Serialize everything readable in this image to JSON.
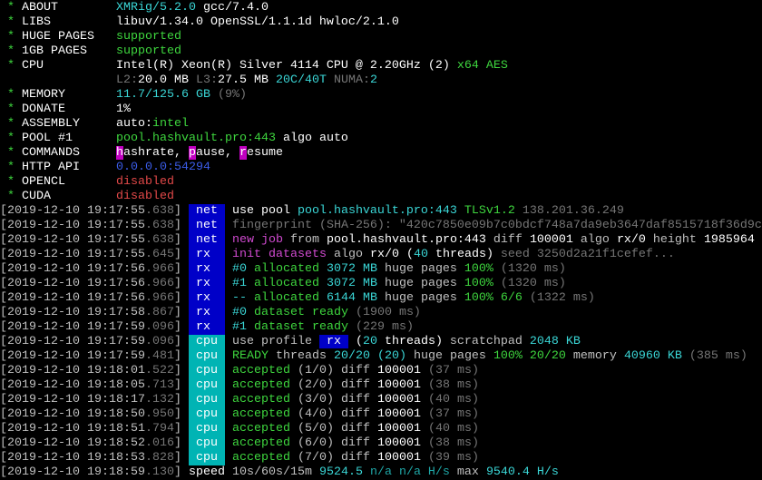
{
  "colors": {
    "green": "#3ed63e",
    "cyan": "#3ad6d6",
    "red": "#e24848",
    "blue": "#3b5ce8",
    "magenta": "#c000c0",
    "tag_net_rx": "#0000c8",
    "tag_cpu": "#00b4b4"
  },
  "header": [
    {
      "label": "ABOUT",
      "segs": [
        [
          "XMRig/5.2.0",
          "C"
        ],
        [
          " gcc/7.4.0",
          "w"
        ]
      ]
    },
    {
      "label": "LIBS",
      "segs": [
        [
          "libuv/1.34.0 OpenSSL/1.1.1d hwloc/2.1.0",
          "w"
        ]
      ]
    },
    {
      "label": "HUGE PAGES",
      "segs": [
        [
          "supported",
          "G"
        ]
      ]
    },
    {
      "label": "1GB PAGES",
      "segs": [
        [
          "supported",
          "G"
        ]
      ]
    },
    {
      "label": "CPU",
      "segs": [
        [
          "Intel(R) Xeon(R) Silver 4114 CPU @ 2.20GHz (2)",
          "w"
        ],
        [
          " x64 AES",
          "G"
        ]
      ]
    },
    {
      "label": "",
      "segs": [
        [
          "L2:",
          "d"
        ],
        [
          "20.0 MB",
          "w"
        ],
        [
          " L3:",
          "d"
        ],
        [
          "27.5 MB",
          "w"
        ],
        [
          " 20C/40T",
          "C"
        ],
        [
          " NUMA:",
          "d"
        ],
        [
          "2",
          "C"
        ]
      ]
    },
    {
      "label": "MEMORY",
      "segs": [
        [
          "11.7/125.6 GB",
          "C"
        ],
        [
          " (9%)",
          "d"
        ]
      ]
    },
    {
      "label": "DONATE",
      "segs": [
        [
          "1%",
          "w"
        ]
      ]
    },
    {
      "label": "ASSEMBLY",
      "segs": [
        [
          "auto:",
          "w"
        ],
        [
          "intel",
          "G"
        ]
      ]
    },
    {
      "label": "POOL #1",
      "segs": [
        [
          "pool.hashvault.pro:443",
          "G"
        ],
        [
          " algo auto",
          "w"
        ]
      ]
    },
    {
      "label": "COMMANDS",
      "segs": [
        [
          "h",
          "bm"
        ],
        [
          "ashrate, ",
          "w"
        ],
        [
          "p",
          "bm"
        ],
        [
          "ause, ",
          "w"
        ],
        [
          "r",
          "bm"
        ],
        [
          "esume",
          "w"
        ]
      ]
    },
    {
      "label": "HTTP API",
      "segs": [
        [
          "0.0.0.0:54294",
          "B"
        ]
      ]
    },
    {
      "label": "OPENCL",
      "segs": [
        [
          "disabled",
          "R"
        ]
      ]
    },
    {
      "label": "CUDA",
      "segs": [
        [
          "disabled",
          "R"
        ]
      ]
    }
  ],
  "log": [
    {
      "ts": "2019-12-10 19:17:55",
      "ms": ".638",
      "tag": "net",
      "segs": [
        [
          "use pool ",
          "w"
        ],
        [
          "pool.hashvault.pro:443",
          "C"
        ],
        [
          " TLSv1.2",
          "G"
        ],
        [
          " 138.201.36.249",
          "d"
        ]
      ]
    },
    {
      "ts": "2019-12-10 19:17:55",
      "ms": ".638",
      "tag": "net",
      "segs": [
        [
          "fingerprint (SHA-256): \"420c7850e09b7c0bdcf748a7da9eb3647daf8515718f36d9c",
          "d"
        ]
      ]
    },
    {
      "ts": "2019-12-10 19:17:55",
      "ms": ".638",
      "tag": "net",
      "segs": [
        [
          "new job",
          "M"
        ],
        [
          " from ",
          "g"
        ],
        [
          "pool.hashvault.pro:443",
          "w"
        ],
        [
          " diff ",
          "g"
        ],
        [
          "100001",
          "w"
        ],
        [
          " algo ",
          "g"
        ],
        [
          "rx/0",
          "w"
        ],
        [
          " height ",
          "g"
        ],
        [
          "1985964",
          "w"
        ]
      ]
    },
    {
      "ts": "2019-12-10 19:17:55",
      "ms": ".645",
      "tag": "rx",
      "segs": [
        [
          "init datasets",
          "M"
        ],
        [
          " algo ",
          "g"
        ],
        [
          "rx/0",
          "w"
        ],
        [
          " (",
          "w"
        ],
        [
          "40",
          "C"
        ],
        [
          " threads)",
          "w"
        ],
        [
          " seed 3250d2a21f1cefef...",
          "d"
        ]
      ]
    },
    {
      "ts": "2019-12-10 19:17:56",
      "ms": ".966",
      "tag": "rx",
      "segs": [
        [
          "#0",
          "C"
        ],
        [
          " allocated",
          "G"
        ],
        [
          " 3072 MB",
          "C"
        ],
        [
          " huge pages",
          "g"
        ],
        [
          " 100%",
          "G"
        ],
        [
          " (1320 ms)",
          "d"
        ]
      ]
    },
    {
      "ts": "2019-12-10 19:17:56",
      "ms": ".966",
      "tag": "rx",
      "segs": [
        [
          "#1",
          "C"
        ],
        [
          " allocated",
          "G"
        ],
        [
          " 3072 MB",
          "C"
        ],
        [
          " huge pages",
          "g"
        ],
        [
          " 100%",
          "G"
        ],
        [
          " (1320 ms)",
          "d"
        ]
      ]
    },
    {
      "ts": "2019-12-10 19:17:56",
      "ms": ".966",
      "tag": "rx",
      "segs": [
        [
          "--",
          "C"
        ],
        [
          " allocated",
          "G"
        ],
        [
          " 6144 MB",
          "C"
        ],
        [
          " huge pages",
          "g"
        ],
        [
          " 100%",
          "G"
        ],
        [
          " 6/6",
          "G"
        ],
        [
          " (1322 ms)",
          "d"
        ]
      ]
    },
    {
      "ts": "2019-12-10 19:17:58",
      "ms": ".867",
      "tag": "rx",
      "segs": [
        [
          "#0",
          "C"
        ],
        [
          " dataset ready",
          "G"
        ],
        [
          " (1900 ms)",
          "d"
        ]
      ]
    },
    {
      "ts": "2019-12-10 19:17:59",
      "ms": ".096",
      "tag": "rx",
      "segs": [
        [
          "#1",
          "C"
        ],
        [
          " dataset ready",
          "G"
        ],
        [
          " (229 ms)",
          "d"
        ]
      ]
    },
    {
      "ts": "2019-12-10 19:17:59",
      "ms": ".096",
      "tag": "cpu",
      "segs": [
        [
          "use profile ",
          "g"
        ],
        [
          " rx ",
          "bb"
        ],
        [
          " (",
          "w"
        ],
        [
          "20",
          "C"
        ],
        [
          " threads)",
          "w"
        ],
        [
          " scratchpad ",
          "g"
        ],
        [
          "2048 KB",
          "C"
        ]
      ]
    },
    {
      "ts": "2019-12-10 19:17:59",
      "ms": ".481",
      "tag": "cpu",
      "segs": [
        [
          "READY",
          "G"
        ],
        [
          " threads ",
          "g"
        ],
        [
          "20/20",
          "C"
        ],
        [
          " (20)",
          "C"
        ],
        [
          " huge pages ",
          "g"
        ],
        [
          "100%",
          "G"
        ],
        [
          " 20/20",
          "G"
        ],
        [
          " memory ",
          "g"
        ],
        [
          "40960 KB",
          "C"
        ],
        [
          " (385 ms)",
          "d"
        ]
      ]
    },
    {
      "ts": "2019-12-10 19:18:01",
      "ms": ".522",
      "tag": "cpu",
      "segs": [
        [
          "accepted",
          "G"
        ],
        [
          " (1/0)",
          "g"
        ],
        [
          " diff ",
          "g"
        ],
        [
          "100001",
          "w"
        ],
        [
          " (37 ms)",
          "d"
        ]
      ]
    },
    {
      "ts": "2019-12-10 19:18:05",
      "ms": ".713",
      "tag": "cpu",
      "segs": [
        [
          "accepted",
          "G"
        ],
        [
          " (2/0)",
          "g"
        ],
        [
          " diff ",
          "g"
        ],
        [
          "100001",
          "w"
        ],
        [
          " (38 ms)",
          "d"
        ]
      ]
    },
    {
      "ts": "2019-12-10 19:18:17",
      "ms": ".132",
      "tag": "cpu",
      "segs": [
        [
          "accepted",
          "G"
        ],
        [
          " (3/0)",
          "g"
        ],
        [
          " diff ",
          "g"
        ],
        [
          "100001",
          "w"
        ],
        [
          " (40 ms)",
          "d"
        ]
      ]
    },
    {
      "ts": "2019-12-10 19:18:50",
      "ms": ".950",
      "tag": "cpu",
      "segs": [
        [
          "accepted",
          "G"
        ],
        [
          " (4/0)",
          "g"
        ],
        [
          " diff ",
          "g"
        ],
        [
          "100001",
          "w"
        ],
        [
          " (37 ms)",
          "d"
        ]
      ]
    },
    {
      "ts": "2019-12-10 19:18:51",
      "ms": ".794",
      "tag": "cpu",
      "segs": [
        [
          "accepted",
          "G"
        ],
        [
          " (5/0)",
          "g"
        ],
        [
          " diff ",
          "g"
        ],
        [
          "100001",
          "w"
        ],
        [
          " (40 ms)",
          "d"
        ]
      ]
    },
    {
      "ts": "2019-12-10 19:18:52",
      "ms": ".016",
      "tag": "cpu",
      "segs": [
        [
          "accepted",
          "G"
        ],
        [
          " (6/0)",
          "g"
        ],
        [
          " diff ",
          "g"
        ],
        [
          "100001",
          "w"
        ],
        [
          " (38 ms)",
          "d"
        ]
      ]
    },
    {
      "ts": "2019-12-10 19:18:53",
      "ms": ".828",
      "tag": "cpu",
      "segs": [
        [
          "accepted",
          "G"
        ],
        [
          " (7/0)",
          "g"
        ],
        [
          " diff ",
          "g"
        ],
        [
          "100001",
          "w"
        ],
        [
          " (39 ms)",
          "d"
        ]
      ]
    },
    {
      "ts": "2019-12-10 19:18:59",
      "ms": ".130",
      "tag": "",
      "segs": [
        [
          "speed",
          "w"
        ],
        [
          " 10s/60s/15m ",
          "g"
        ],
        [
          "9524.5",
          "C"
        ],
        [
          " n/a n/a H/s",
          "c2"
        ],
        [
          " max ",
          "g"
        ],
        [
          "9540.4 H/s",
          "C"
        ]
      ]
    }
  ]
}
